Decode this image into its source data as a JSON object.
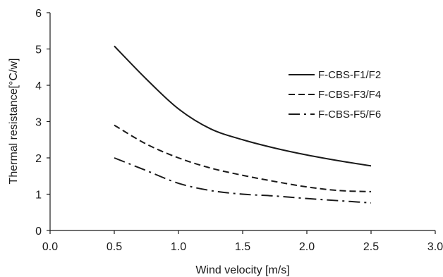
{
  "chart_data": {
    "type": "line",
    "title": "",
    "xlabel": "Wind velocity [m/s]",
    "ylabel": "Thermal resistance[°C/w]",
    "xlim": [
      0.0,
      3.0
    ],
    "ylim": [
      0,
      6
    ],
    "x_ticks": [
      "0.0",
      "0.5",
      "1.0",
      "1.5",
      "2.0",
      "2.5",
      "3.0"
    ],
    "x_tick_values": [
      0,
      0.5,
      1.0,
      1.5,
      2.0,
      2.5,
      3.0
    ],
    "y_ticks": [
      "0",
      "1",
      "2",
      "3",
      "4",
      "5",
      "6"
    ],
    "y_tick_values": [
      0,
      1,
      2,
      3,
      4,
      5,
      6
    ],
    "grid": false,
    "legend_position": "right",
    "series": [
      {
        "name": "F-CBS-F1/F2",
        "style": "solid",
        "color": "#1a1a1a",
        "x": [
          0.5,
          0.75,
          1.0,
          1.25,
          1.5,
          1.75,
          2.0,
          2.25,
          2.5
        ],
        "y": [
          5.08,
          4.17,
          3.35,
          2.8,
          2.5,
          2.27,
          2.08,
          1.92,
          1.78
        ]
      },
      {
        "name": "F-CBS-F3/F4",
        "style": "dashed",
        "color": "#1a1a1a",
        "x": [
          0.5,
          0.75,
          1.0,
          1.25,
          1.5,
          1.75,
          2.0,
          2.25,
          2.5
        ],
        "y": [
          2.9,
          2.38,
          2.0,
          1.72,
          1.52,
          1.35,
          1.2,
          1.1,
          1.07
        ]
      },
      {
        "name": "F-CBS-F5/F6",
        "style": "dashdot",
        "color": "#1a1a1a",
        "x": [
          0.5,
          0.75,
          1.0,
          1.25,
          1.5,
          1.75,
          2.0,
          2.25,
          2.5
        ],
        "y": [
          2.0,
          1.65,
          1.3,
          1.1,
          1.0,
          0.95,
          0.88,
          0.82,
          0.76
        ]
      }
    ]
  }
}
